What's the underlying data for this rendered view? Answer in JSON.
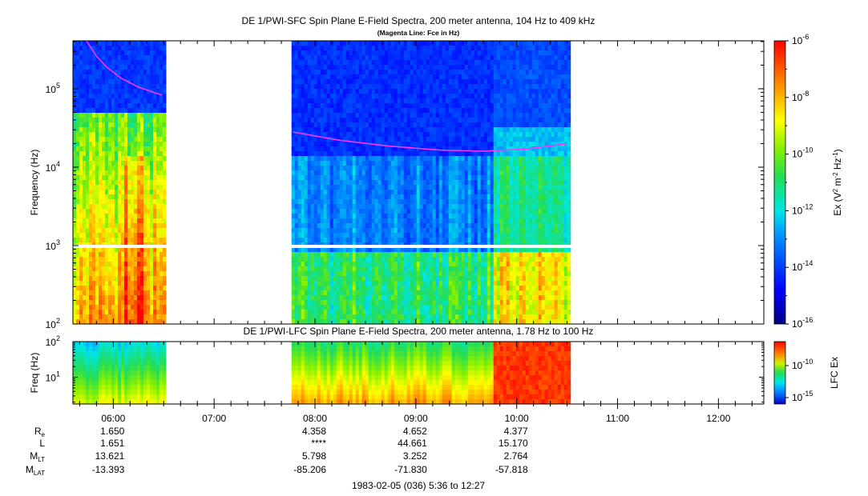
{
  "chart_data": [
    {
      "type": "heatmap",
      "title": "DE 1/PWI-SFC  Spin Plane E-Field Spectra, 200 meter antenna, 104 Hz to 409 kHz",
      "subtitle": "(Magenta Line: Fce in Hz)",
      "ylabel": "Frequency (Hz)",
      "yscale": "log",
      "ylim": [
        100,
        409000
      ],
      "y_tick_labels": [
        {
          "base": "10",
          "exp": "2",
          "value": 100
        },
        {
          "base": "10",
          "exp": "3",
          "value": 1000
        },
        {
          "base": "10",
          "exp": "4",
          "value": 10000
        },
        {
          "base": "10",
          "exp": "5",
          "value": 100000
        }
      ],
      "colorbar": {
        "label_parts": {
          "pre": "Ex (V",
          "sup1": "2",
          "mid": " m",
          "sup2": "-2",
          "mid2": " Hz",
          "sup3": "-1",
          "post": ")"
        },
        "scale": "log",
        "range": [
          1e-16,
          1e-06
        ],
        "tick_labels": [
          {
            "base": "10",
            "exp": "-6",
            "value": -6
          },
          {
            "base": "10",
            "exp": "-8",
            "value": -8
          },
          {
            "base": "10",
            "exp": "-10",
            "value": -10
          },
          {
            "base": "10",
            "exp": "-12",
            "value": -12
          },
          {
            "base": "10",
            "exp": "-14",
            "value": -14
          },
          {
            "base": "10",
            "exp": "-16",
            "value": -16
          }
        ]
      },
      "data_intervals": [
        [
          "05:36",
          "06:31"
        ],
        [
          "07:46",
          "10:31"
        ]
      ],
      "fce_line": [
        {
          "x": "05:44",
          "y": 409000
        },
        {
          "x": "05:50",
          "y": 260000
        },
        {
          "x": "05:56",
          "y": 190000
        },
        {
          "x": "06:05",
          "y": 135000
        },
        {
          "x": "06:15",
          "y": 105000
        },
        {
          "x": "06:24",
          "y": 90000
        },
        {
          "x": "06:29",
          "y": 83000
        },
        {
          "x": "07:47",
          "y": 28000
        },
        {
          "x": "08:15",
          "y": 22000
        },
        {
          "x": "08:45",
          "y": 18500
        },
        {
          "x": "09:15",
          "y": 16500
        },
        {
          "x": "09:40",
          "y": 16000
        },
        {
          "x": "10:05",
          "y": 17000
        },
        {
          "x": "10:30",
          "y": 20000
        }
      ]
    },
    {
      "type": "heatmap",
      "title": "DE 1/PWI-LFC  Spin Plane E-Field Spectra, 200 meter antenna, 1.78 Hz to 100 Hz",
      "ylabel": "Freq (Hz)",
      "yscale": "log",
      "ylim": [
        1.78,
        100
      ],
      "y_tick_labels": [
        {
          "base": "10",
          "exp": "1",
          "value": 10
        },
        {
          "base": "10",
          "exp": "2",
          "value": 100
        }
      ],
      "colorbar": {
        "label": "LFC Ex",
        "tick_labels": [
          {
            "base": "10",
            "exp": "-10",
            "value": -10
          },
          {
            "base": "10",
            "exp": "-15",
            "value": -15
          }
        ]
      },
      "data_intervals": [
        [
          "05:36",
          "06:31"
        ],
        [
          "07:46",
          "10:31"
        ]
      ]
    }
  ],
  "time_axis": {
    "range": [
      "05:36",
      "12:27"
    ],
    "ticks": [
      "06:00",
      "07:00",
      "08:00",
      "09:00",
      "10:00",
      "11:00",
      "12:00"
    ]
  },
  "ephemeris": {
    "rows": [
      {
        "label": "R",
        "sub": "e",
        "values": [
          "1.650",
          "4.358",
          "4.652",
          "4.377"
        ]
      },
      {
        "label": "L",
        "sub": "",
        "values": [
          "1.651",
          "****",
          "44.661",
          "15.170"
        ]
      },
      {
        "label": "M",
        "sub": "LT",
        "values": [
          "13.621",
          "5.798",
          "3.252",
          "2.764"
        ]
      },
      {
        "label": "M",
        "sub": "LAT",
        "values": [
          "-13.393",
          "-85.206",
          "-71.830",
          "-57.818"
        ]
      }
    ],
    "columns": [
      "06:00",
      "08:00",
      "09:00",
      "10:00"
    ]
  },
  "footer": "1983-02-05 (036) 5:36 to 12:27"
}
